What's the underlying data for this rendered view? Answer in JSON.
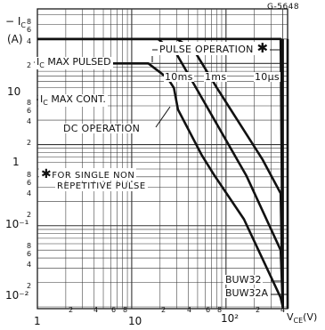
{
  "figure_id": "G-5648",
  "chart_data": {
    "type": "line",
    "title": "",
    "xlabel": "V_CE (V)",
    "ylabel": "-I_C (A)",
    "xscale": "log",
    "yscale": "log",
    "xlim": [
      1,
      450
    ],
    "ylim": [
      0.0095,
      47
    ],
    "grid": true,
    "x_ticks": [
      "1",
      "2",
      "4",
      "6",
      "8",
      "10",
      "2",
      "4",
      "6",
      "8",
      "10²",
      "2",
      "4"
    ],
    "y_ticks": [
      "8",
      "6",
      "4",
      "2",
      "10",
      "8",
      "6",
      "4",
      "2",
      "1",
      "8",
      "6",
      "4",
      "2",
      "10⁻¹",
      "8",
      "6",
      "4",
      "2",
      "10⁻²"
    ],
    "limits": [
      {
        "name": "I_C MAX PULSED",
        "value": 20
      },
      {
        "name": "I_C MAX CONT.",
        "value": 10
      }
    ],
    "vertical_limits": [
      {
        "name": "BUW32",
        "x": 400
      },
      {
        "name": "BUW32A",
        "x": 450
      }
    ],
    "series": [
      {
        "name": "DC OPERATION",
        "x": [
          1,
          15,
          24,
          28,
          31,
          55,
          75,
          155,
          380,
          400
        ],
        "y": [
          10,
          10,
          6.6,
          5,
          2.7,
          0.75,
          0.42,
          0.12,
          0.013,
          0.01
        ]
      },
      {
        "name": "10ms",
        "x": [
          1,
          19,
          30,
          60,
          165,
          380,
          400
        ],
        "y": [
          20,
          20,
          13,
          3.2,
          0.41,
          0.05,
          0.01
        ]
      },
      {
        "name": "1ms",
        "x": [
          1,
          30,
          45,
          80,
          245,
          380,
          400
        ],
        "y": [
          20,
          20,
          15,
          5,
          0.65,
          0.25,
          0.01
        ]
      },
      {
        "name": "10μs",
        "x": [
          1,
          380,
          400
        ],
        "y": [
          20,
          20,
          0.01
        ]
      }
    ],
    "annotations": {
      "pulse_operation": "PULSE OPERATION",
      "single_pulse_note_line1": "FOR SINGLE NON",
      "single_pulse_note_line2": "REPETITIVE PULSE"
    }
  }
}
